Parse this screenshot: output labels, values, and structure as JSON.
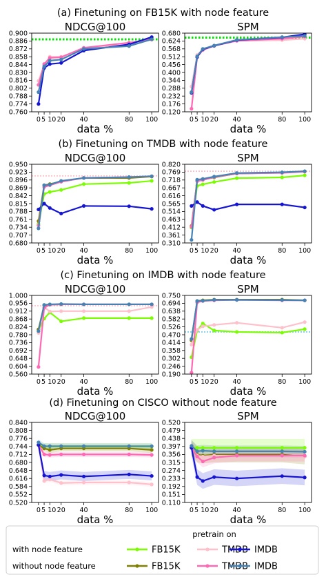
{
  "chart_data": [
    {
      "type": "line",
      "title": "(a) Finetuning on FB15K with node feature",
      "x": [
        0,
        5,
        10,
        20,
        40,
        80,
        100
      ],
      "panels": [
        {
          "subtitle": "NDCG@100",
          "xlabel": "data %",
          "ylim": [
            0.76,
            0.9
          ],
          "yticks": [
            "0.900",
            "0.886",
            "0.872",
            "0.858",
            "0.844",
            "0.830",
            "0.816",
            "0.802",
            "0.788",
            "0.774",
            "0.760"
          ],
          "reference": {
            "value": 0.889,
            "color": "#00e600"
          },
          "series": [
            {
              "color": "#ffc0cb",
              "values": [
                0.815,
                0.843,
                0.858,
                0.858,
                0.873,
                0.882,
                0.888
              ]
            },
            {
              "color": "#ff69b4",
              "values": [
                0.808,
                0.845,
                0.856,
                0.857,
                0.874,
                0.883,
                0.889
              ]
            },
            {
              "color": "#1515d1",
              "values": [
                0.774,
                0.838,
                0.845,
                0.847,
                0.869,
                0.88,
                0.893
              ]
            },
            {
              "color": "#4682b4",
              "values": [
                0.795,
                0.841,
                0.851,
                0.853,
                0.872,
                0.877,
                0.889
              ]
            }
          ]
        },
        {
          "subtitle": "SPM",
          "xlabel": "data %",
          "ylim": [
            0.12,
            0.68
          ],
          "yticks": [
            "0.680",
            "0.624",
            "0.568",
            "0.512",
            "0.456",
            "0.400",
            "0.344",
            "0.288",
            "0.232",
            "0.176",
            "0.120"
          ],
          "reference": {
            "value": 0.648,
            "color": "#00e600"
          },
          "series": [
            {
              "color": "#ffc0cb",
              "values": [
                0.3,
                0.525,
                0.565,
                0.59,
                0.625,
                0.63,
                0.64
              ]
            },
            {
              "color": "#ff69b4",
              "values": [
                0.142,
                0.51,
                0.56,
                0.59,
                0.625,
                0.64,
                0.655
              ]
            },
            {
              "color": "#1515d1",
              "values": [
                0.255,
                0.51,
                0.565,
                0.59,
                0.63,
                0.65,
                0.672
              ]
            },
            {
              "color": "#4682b4",
              "values": [
                0.26,
                0.515,
                0.568,
                0.592,
                0.632,
                0.652,
                0.66
              ]
            }
          ]
        }
      ]
    },
    {
      "type": "line",
      "title": "(b) Finetuning on TMDB with node feature",
      "x": [
        0,
        5,
        10,
        20,
        40,
        80,
        100
      ],
      "panels": [
        {
          "subtitle": "NDCG@100",
          "xlabel": "data %",
          "ylim": [
            0.68,
            0.95
          ],
          "yticks": [
            "0.950",
            "0.923",
            "0.896",
            "0.869",
            "0.842",
            "0.815",
            "0.788",
            "0.761",
            "0.734",
            "0.707",
            "0.680"
          ],
          "reference": {
            "value": 0.91,
            "color": "#ffc0cb"
          },
          "series": [
            {
              "color": "#7cfc00",
              "values": [
                0.745,
                0.848,
                0.855,
                0.862,
                0.882,
                0.886,
                0.893
              ]
            },
            {
              "color": "#808000",
              "values": [
                0.755,
                0.878,
                0.882,
                0.891,
                0.903,
                0.903,
                0.908
              ]
            },
            {
              "color": "#ff69b4",
              "values": [
                0.74,
                0.872,
                0.878,
                0.89,
                0.903,
                0.906,
                0.909
              ]
            },
            {
              "color": "#1515d1",
              "values": [
                0.795,
                0.815,
                0.8,
                0.781,
                0.807,
                0.806,
                0.797
              ]
            },
            {
              "color": "#4682b4",
              "values": [
                0.73,
                0.878,
                0.88,
                0.893,
                0.903,
                0.906,
                0.909
              ]
            }
          ]
        },
        {
          "subtitle": "SPM",
          "xlabel": "data %",
          "ylim": [
            0.31,
            0.82
          ],
          "yticks": [
            "0.820",
            "0.769",
            "0.718",
            "0.667",
            "0.616",
            "0.565",
            "0.514",
            "0.463",
            "0.412",
            "0.361",
            "0.310"
          ],
          "reference": {
            "value": 0.775,
            "color": "#ffc0cb"
          },
          "series": [
            {
              "color": "#7cfc00",
              "values": [
                0.41,
                0.68,
                0.69,
                0.705,
                0.73,
                0.735,
                0.748
              ]
            },
            {
              "color": "#808000",
              "values": [
                0.42,
                0.715,
                0.72,
                0.735,
                0.76,
                0.765,
                0.775
              ]
            },
            {
              "color": "#ff69b4",
              "values": [
                0.415,
                0.71,
                0.718,
                0.737,
                0.76,
                0.764,
                0.772
              ]
            },
            {
              "color": "#1515d1",
              "values": [
                0.55,
                0.575,
                0.55,
                0.525,
                0.56,
                0.56,
                0.54
              ]
            },
            {
              "color": "#4682b4",
              "values": [
                0.33,
                0.72,
                0.725,
                0.74,
                0.763,
                0.768,
                0.775
              ]
            }
          ]
        }
      ]
    },
    {
      "type": "line",
      "title": "(c) Finetuning on IMDB with node feature",
      "x": [
        0,
        5,
        10,
        20,
        40,
        80,
        100
      ],
      "panels": [
        {
          "subtitle": "NDCG@100",
          "xlabel": "data %",
          "ylim": [
            0.56,
            1.0
          ],
          "yticks": [
            "1.000",
            "0.956",
            "0.912",
            "0.868",
            "0.824",
            "0.780",
            "0.736",
            "0.692",
            "0.648",
            "0.604",
            "0.560"
          ],
          "reference": {
            "value": 0.942,
            "color": "#ffc0cb"
          },
          "series": [
            {
              "color": "#7cfc00",
              "values": [
                0.8,
                0.87,
                0.905,
                0.855,
                0.873,
                0.873,
                0.873
              ]
            },
            {
              "color": "#808000",
              "values": [
                0.81,
                0.945,
                0.948,
                0.95,
                0.95,
                0.95,
                0.95
              ]
            },
            {
              "color": "#ffc0cb",
              "values": [
                0.79,
                0.935,
                0.91,
                0.912,
                0.912,
                0.912,
                0.935
              ]
            },
            {
              "color": "#ff69b4",
              "values": [
                0.6,
                0.93,
                0.948,
                0.95,
                0.95,
                0.95,
                0.95
              ]
            },
            {
              "color": "#4682b4",
              "values": [
                0.8,
                0.947,
                0.95,
                0.952,
                0.95,
                0.95,
                0.95
              ]
            }
          ]
        },
        {
          "subtitle": "SPM",
          "xlabel": "data %",
          "ylim": [
            0.19,
            0.75
          ],
          "yticks": [
            "0.750",
            "0.694",
            "0.638",
            "0.582",
            "0.526",
            "0.470",
            "0.414",
            "0.358",
            "0.302",
            "0.246",
            "0.190"
          ],
          "reference": {
            "value": 0.49,
            "color": "#87ceeb"
          },
          "series": [
            {
              "color": "#7cfc00",
              "values": [
                0.31,
                0.5,
                0.55,
                0.5,
                0.49,
                0.485,
                0.51
              ]
            },
            {
              "color": "#808000",
              "values": [
                0.43,
                0.71,
                0.715,
                0.72,
                0.72,
                0.72,
                0.715
              ]
            },
            {
              "color": "#ffc0cb",
              "values": [
                0.4,
                0.505,
                0.53,
                0.54,
                0.555,
                0.52,
                0.56
              ]
            },
            {
              "color": "#ff69b4",
              "values": [
                0.2,
                0.7,
                0.71,
                0.715,
                0.718,
                0.715,
                0.715
              ]
            },
            {
              "color": "#4682b4",
              "values": [
                0.44,
                0.71,
                0.712,
                0.718,
                0.718,
                0.717,
                0.715
              ]
            }
          ]
        }
      ]
    },
    {
      "type": "line",
      "title": "(d) Finetuning on CISCO without node feature",
      "x": [
        0,
        5,
        10,
        20,
        40,
        80,
        100
      ],
      "panels": [
        {
          "subtitle": "NDCG@100",
          "xlabel": "data %",
          "ylim": [
            0.52,
            0.84
          ],
          "yticks": [
            "0.840",
            "0.808",
            "0.776",
            "0.744",
            "0.712",
            "0.680",
            "0.648",
            "0.616",
            "0.584",
            "0.552",
            "0.520"
          ],
          "series": [
            {
              "color": "#7cfc00",
              "values": [
                0.75,
                0.744,
                0.744,
                0.744,
                0.744,
                0.744,
                0.744
              ],
              "band": 0.012
            },
            {
              "color": "#808000",
              "values": [
                0.75,
                0.736,
                0.73,
                0.736,
                0.736,
                0.736,
                0.73
              ],
              "band": 0.012
            },
            {
              "color": "#ffc0cb",
              "values": [
                0.75,
                0.606,
                0.612,
                0.598,
                0.6,
                0.6,
                0.592
              ],
              "band": 0.01
            },
            {
              "color": "#ff69b4",
              "values": [
                0.75,
                0.712,
                0.71,
                0.712,
                0.712,
                0.712,
                0.71
              ],
              "band": 0.01
            },
            {
              "color": "#1515d1",
              "values": [
                0.75,
                0.628,
                0.624,
                0.63,
                0.624,
                0.632,
                0.626
              ],
              "band": 0.018
            },
            {
              "color": "#4682b4",
              "values": [
                0.76,
                0.745,
                0.745,
                0.745,
                0.745,
                0.745,
                0.745
              ],
              "band": 0.012
            }
          ]
        },
        {
          "subtitle": "SPM",
          "xlabel": "data %",
          "ylim": [
            0.11,
            0.52
          ],
          "yticks": [
            "0.520",
            "0.479",
            "0.438",
            "0.397",
            "0.356",
            "0.315",
            "0.274",
            "0.233",
            "0.192",
            "0.151",
            "0.110"
          ],
          "series": [
            {
              "color": "#7cfc00",
              "values": [
                0.39,
                0.39,
                0.39,
                0.39,
                0.39,
                0.39,
                0.39
              ],
              "band": 0.045
            },
            {
              "color": "#808000",
              "values": [
                0.39,
                0.355,
                0.35,
                0.355,
                0.355,
                0.355,
                0.345
              ],
              "band": 0.04
            },
            {
              "color": "#ffc0cb",
              "values": [
                0.39,
                0.35,
                0.345,
                0.35,
                0.35,
                0.35,
                0.345
              ],
              "band": 0.03
            },
            {
              "color": "#ff69b4",
              "values": [
                0.39,
                0.345,
                0.32,
                0.34,
                0.35,
                0.35,
                0.35
              ],
              "band": 0.03
            },
            {
              "color": "#1515d1",
              "values": [
                0.39,
                0.24,
                0.22,
                0.24,
                0.233,
                0.245,
                0.238
              ],
              "band": 0.04
            },
            {
              "color": "#4682b4",
              "values": [
                0.4,
                0.372,
                0.375,
                0.372,
                0.372,
                0.372,
                0.37
              ],
              "band": 0.03
            }
          ]
        }
      ]
    }
  ],
  "legend": {
    "title": "pretrain on",
    "rows": [
      {
        "label": "with node feature",
        "entries": [
          {
            "name": "FB15K",
            "color": "#7cfc00"
          },
          {
            "name": "TMDB",
            "color": "#ffc0cb"
          },
          {
            "name": "IMDB",
            "color": "#1515d1"
          }
        ]
      },
      {
        "label": "without node feature",
        "entries": [
          {
            "name": "FB15K",
            "color": "#808000"
          },
          {
            "name": "TMDB",
            "color": "#ff69b4"
          },
          {
            "name": "IMDB",
            "color": "#4682b4"
          }
        ]
      }
    ]
  }
}
